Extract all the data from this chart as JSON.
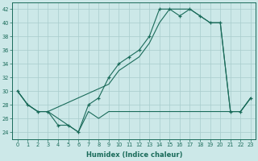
{
  "xlabel": "Humidex (Indice chaleur)",
  "bg_color": "#cce8e8",
  "grid_color": "#a8cccc",
  "line_color": "#1a6b5a",
  "xlim": [
    -0.5,
    23.5
  ],
  "ylim": [
    23,
    43
  ],
  "yticks": [
    24,
    26,
    28,
    30,
    32,
    34,
    36,
    38,
    40,
    42
  ],
  "xticks": [
    0,
    1,
    2,
    3,
    4,
    5,
    6,
    7,
    8,
    9,
    10,
    11,
    12,
    13,
    14,
    15,
    16,
    17,
    18,
    19,
    20,
    21,
    22,
    23
  ],
  "line1_x": [
    0,
    1,
    2,
    3,
    4,
    5,
    6,
    7,
    8,
    9,
    10,
    11,
    12,
    13,
    14,
    15,
    16,
    17,
    18,
    19,
    20,
    21,
    22,
    23
  ],
  "line1_y": [
    30,
    28,
    27,
    27,
    25,
    25,
    24,
    28,
    29,
    32,
    34,
    35,
    36,
    38,
    42,
    42,
    41,
    42,
    41,
    40,
    40,
    27,
    27,
    29
  ],
  "line2_x": [
    0,
    1,
    2,
    3,
    9,
    10,
    11,
    12,
    13,
    14,
    15,
    16,
    17,
    18,
    19,
    20,
    21,
    22,
    23
  ],
  "line2_y": [
    30,
    28,
    27,
    27,
    31,
    33,
    34,
    35,
    37,
    40,
    42,
    42,
    42,
    41,
    40,
    40,
    27,
    27,
    29
  ],
  "line3_x": [
    0,
    1,
    2,
    3,
    4,
    5,
    6,
    7,
    8,
    9,
    10,
    11,
    12,
    13,
    14,
    15,
    16,
    17,
    18,
    19,
    20,
    21,
    22,
    23
  ],
  "line3_y": [
    30,
    28,
    27,
    27,
    26,
    25,
    24,
    27,
    26,
    27,
    27,
    27,
    27,
    27,
    27,
    27,
    27,
    27,
    27,
    27,
    27,
    27,
    27,
    29
  ]
}
